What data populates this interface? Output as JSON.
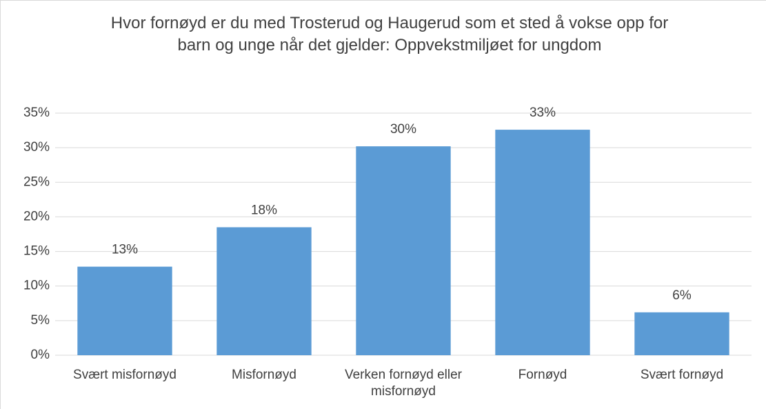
{
  "chart_data": {
    "type": "bar",
    "title": "Hvor fornøyd er du med Trosterud og Haugerud som et sted å vokse opp for barn og unge når det gjelder: Oppvekstmiljøet for ungdom",
    "categories": [
      "Svært misfornøyd",
      "Misfornøyd",
      "Verken fornøyd eller misfornøyd",
      "Fornøyd",
      "Svært fornøyd"
    ],
    "values": [
      12.8,
      18.5,
      30.2,
      32.6,
      6.2
    ],
    "value_labels": [
      "13%",
      "18%",
      "30%",
      "33%",
      "6%"
    ],
    "color": "#5b9bd5",
    "ylim": [
      0,
      35
    ],
    "yticks": [
      {
        "value": 0,
        "label": "0%"
      },
      {
        "value": 5,
        "label": "5%"
      },
      {
        "value": 10,
        "label": "10%"
      },
      {
        "value": 15,
        "label": "15%"
      },
      {
        "value": 20,
        "label": "20%"
      },
      {
        "value": 25,
        "label": "25%"
      },
      {
        "value": 30,
        "label": "30%"
      },
      {
        "value": 35,
        "label": "35%"
      }
    ],
    "grid": true
  }
}
